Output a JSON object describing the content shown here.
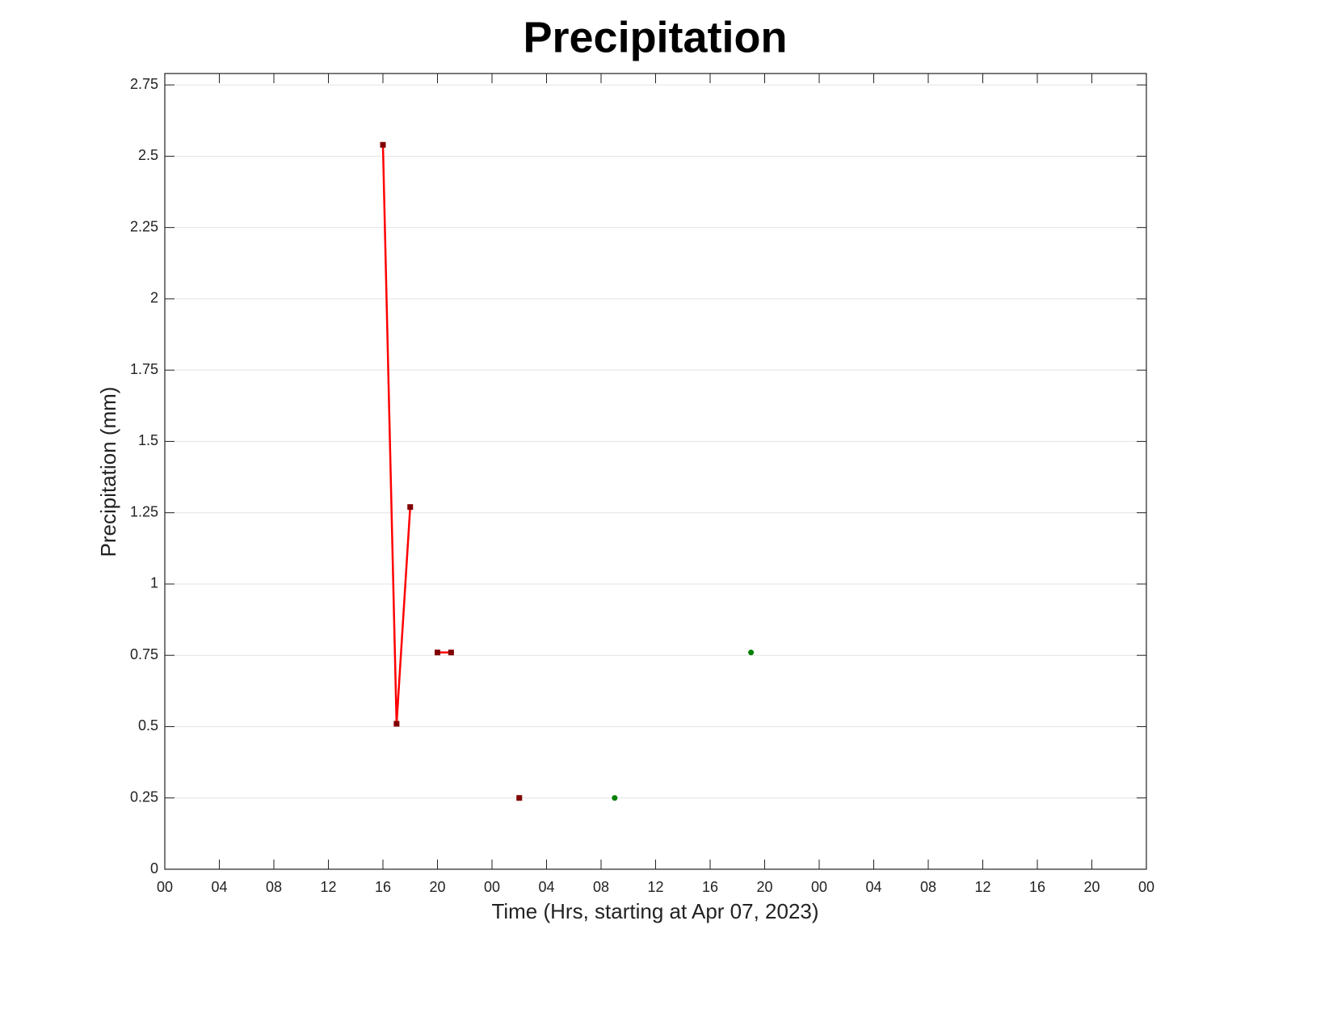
{
  "chart_data": {
    "type": "line",
    "title": "Precipitation",
    "xlabel": "Time (Hrs, starting at Apr 07, 2023)",
    "ylabel": "Precipitation (mm)",
    "xlim": [
      0,
      72
    ],
    "xticks": [
      {
        "value": 0,
        "label": "00"
      },
      {
        "value": 4,
        "label": "04"
      },
      {
        "value": 8,
        "label": "08"
      },
      {
        "value": 12,
        "label": "12"
      },
      {
        "value": 16,
        "label": "16"
      },
      {
        "value": 20,
        "label": "20"
      },
      {
        "value": 24,
        "label": "00"
      },
      {
        "value": 28,
        "label": "04"
      },
      {
        "value": 32,
        "label": "08"
      },
      {
        "value": 36,
        "label": "12"
      },
      {
        "value": 40,
        "label": "16"
      },
      {
        "value": 44,
        "label": "20"
      },
      {
        "value": 48,
        "label": "00"
      },
      {
        "value": 52,
        "label": "04"
      },
      {
        "value": 56,
        "label": "08"
      },
      {
        "value": 60,
        "label": "12"
      },
      {
        "value": 64,
        "label": "16"
      },
      {
        "value": 68,
        "label": "20"
      },
      {
        "value": 72,
        "label": "00"
      }
    ],
    "ylim": [
      0,
      2.79
    ],
    "yticks": [
      0,
      0.25,
      0.5,
      0.75,
      1,
      1.25,
      1.5,
      1.75,
      2,
      2.25,
      2.5,
      2.75
    ],
    "grid": true,
    "series": [
      {
        "x": [
          16,
          17,
          18,
          19,
          20,
          21,
          22,
          26
        ],
        "values": [
          2.54,
          0.51,
          1.27,
          null,
          0.76,
          0.76,
          null,
          0.25
        ],
        "color": "#ff0000",
        "marker_color": "#800000",
        "line": true
      },
      {
        "x": [
          33,
          43
        ],
        "values": [
          0.25,
          0.76
        ],
        "color": "#008000",
        "marker_color": "#008000",
        "line": false
      }
    ]
  }
}
